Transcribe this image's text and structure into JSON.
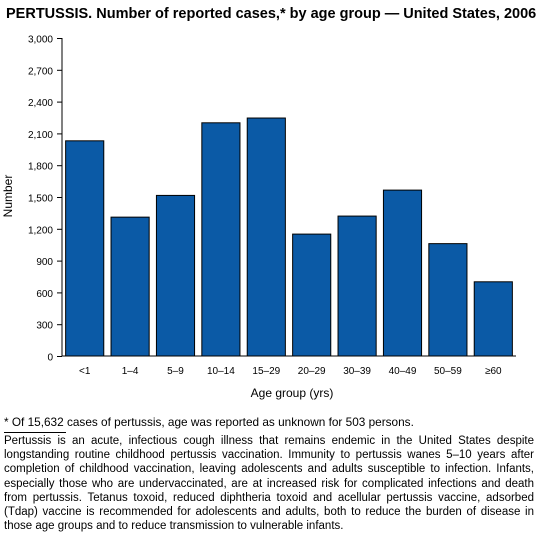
{
  "title": "PERTUSSIS. Number of reported cases,* by age group — United States, 2006",
  "chart_data": {
    "type": "bar",
    "title": "PERTUSSIS. Number of reported cases,* by age group — United States, 2006",
    "xlabel": "Age group (yrs)",
    "ylabel": "Number",
    "categories": [
      "<1",
      "1–4",
      "5–9",
      "10–14",
      "15–29",
      "20–29",
      "30–39",
      "40–49",
      "50–59",
      "≥60"
    ],
    "values": [
      2030,
      1310,
      1515,
      2200,
      2245,
      1150,
      1320,
      1565,
      1060,
      700
    ],
    "ylim": [
      0,
      3000
    ],
    "yticks": [
      0,
      300,
      600,
      900,
      1200,
      1500,
      1800,
      2100,
      2400,
      2700,
      3000
    ],
    "ytick_labels": [
      "0",
      "300",
      "600",
      "900",
      "1,200",
      "1,500",
      "1,800",
      "2,100",
      "2,400",
      "2,700",
      "3,000"
    ],
    "bar_color": "#0b5aa6",
    "grid": false,
    "legend": "none"
  },
  "footnote": "* Of 15,632 cases of pertussis, age was reported as unknown for 503 persons.",
  "description": "Pertussis is an acute, infectious cough illness that remains endemic in the United States despite longstanding routine childhood pertussis vaccination. Immunity to pertussis wanes 5–10 years after completion of childhood vaccination, leaving adolescents and adults susceptible to infection. Infants, especially those who are undervaccinated, are at increased risk for complicated infections and death from pertussis. Tetanus toxoid, reduced diphtheria toxoid and acellular pertussis vaccine, adsorbed (Tdap) vaccine is recommended for adolescents and adults, both to reduce the burden of disease in those age groups and to reduce transmission to vulnerable infants."
}
